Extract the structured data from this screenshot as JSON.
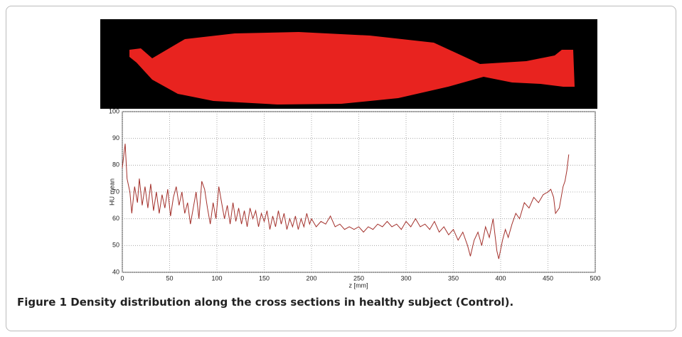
{
  "chart_data": {
    "type": "line",
    "xlabel": "z [mm]",
    "ylabel": "HU mean",
    "x": [
      0,
      3,
      5,
      8,
      10,
      13,
      16,
      18,
      21,
      24,
      27,
      30,
      33,
      36,
      39,
      42,
      45,
      48,
      51,
      54,
      57,
      60,
      63,
      66,
      69,
      72,
      75,
      78,
      81,
      84,
      87,
      90,
      93,
      96,
      99,
      102,
      105,
      108,
      111,
      114,
      117,
      120,
      123,
      126,
      129,
      132,
      135,
      138,
      141,
      144,
      147,
      150,
      153,
      156,
      159,
      162,
      165,
      168,
      171,
      174,
      177,
      180,
      183,
      186,
      189,
      192,
      195,
      198,
      200,
      205,
      210,
      215,
      220,
      225,
      230,
      235,
      240,
      245,
      250,
      255,
      260,
      265,
      270,
      275,
      280,
      285,
      290,
      295,
      300,
      305,
      310,
      315,
      320,
      325,
      330,
      335,
      340,
      345,
      350,
      355,
      360,
      365,
      368,
      372,
      376,
      380,
      384,
      388,
      392,
      396,
      398,
      402,
      405,
      408,
      412,
      416,
      420,
      425,
      430,
      435,
      440,
      445,
      450,
      453,
      456,
      458,
      462,
      466,
      468,
      470,
      472
    ],
    "series": [
      {
        "name": "HU mean",
        "color": "#a3302b",
        "values": [
          79,
          88,
          75,
          70,
          62,
          72,
          66,
          75,
          65,
          72,
          64,
          73,
          63,
          70,
          62,
          69,
          64,
          71,
          61,
          68,
          72,
          65,
          70,
          62,
          66,
          58,
          64,
          70,
          60,
          74,
          71,
          64,
          58,
          66,
          60,
          72,
          66,
          60,
          65,
          58,
          66,
          59,
          64,
          58,
          63,
          57,
          64,
          60,
          63,
          57,
          62,
          59,
          63,
          56,
          61,
          57,
          63,
          58,
          62,
          56,
          60,
          57,
          61,
          56,
          60,
          57,
          62,
          58,
          60,
          57,
          59,
          58,
          61,
          57,
          58,
          56,
          57,
          56,
          57,
          55,
          57,
          56,
          58,
          57,
          59,
          57,
          58,
          56,
          59,
          57,
          60,
          57,
          58,
          56,
          59,
          55,
          57,
          54,
          56,
          52,
          55,
          50,
          46,
          52,
          55,
          50,
          57,
          53,
          60,
          48,
          45,
          52,
          56,
          53,
          58,
          62,
          60,
          66,
          64,
          68,
          66,
          69,
          70,
          71,
          68,
          62,
          64,
          72,
          74,
          78,
          84
        ]
      }
    ],
    "xlim": [
      0,
      500
    ],
    "ylim": [
      40,
      100
    ],
    "xticks": [
      0,
      50,
      100,
      150,
      200,
      250,
      300,
      350,
      400,
      450,
      500
    ],
    "yticks": [
      40,
      50,
      60,
      70,
      80,
      90,
      100
    ],
    "grid": true
  },
  "caption": {
    "label": "Figure 1",
    "text": "Density distribution along the cross sections in healthy subject (Control)."
  }
}
